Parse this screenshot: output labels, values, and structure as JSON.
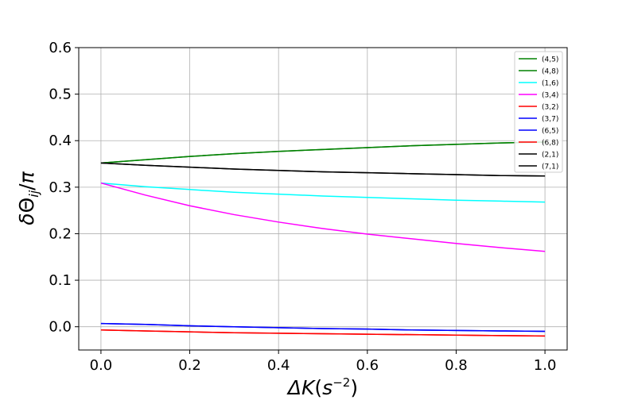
{
  "chart_data": {
    "type": "line",
    "xlabel": "ΔK(s⁻²)",
    "ylabel": "δΘ_ij/π",
    "xlim": [
      -0.05,
      1.05
    ],
    "ylim": [
      -0.05,
      0.6
    ],
    "grid": true,
    "legend_position": "top-right",
    "x_ticks": [
      0.0,
      0.2,
      0.4,
      0.6,
      0.8,
      1.0
    ],
    "x_tick_labels": [
      "0.0",
      "0.2",
      "0.4",
      "0.6",
      "0.8",
      "1.0"
    ],
    "y_ticks": [
      0.0,
      0.1,
      0.2,
      0.3,
      0.4,
      0.5,
      0.6
    ],
    "y_tick_labels": [
      "0.0",
      "0.1",
      "0.2",
      "0.3",
      "0.4",
      "0.5",
      "0.6"
    ],
    "x": [
      0.0,
      0.1,
      0.2,
      0.3,
      0.4,
      0.5,
      0.6,
      0.7,
      0.8,
      0.9,
      1.0
    ],
    "series": [
      {
        "name": "(4,5)",
        "color": "#008000",
        "values": [
          0.352,
          0.359,
          0.366,
          0.372,
          0.377,
          0.381,
          0.385,
          0.389,
          0.392,
          0.395,
          0.397
        ]
      },
      {
        "name": "(4,8)",
        "color": "#008000",
        "values": [
          0.352,
          0.359,
          0.366,
          0.372,
          0.377,
          0.381,
          0.385,
          0.389,
          0.392,
          0.395,
          0.397
        ]
      },
      {
        "name": "(1,6)",
        "color": "#00ffff",
        "values": [
          0.309,
          0.301,
          0.295,
          0.289,
          0.285,
          0.281,
          0.278,
          0.275,
          0.272,
          0.27,
          0.268
        ]
      },
      {
        "name": "(3,4)",
        "color": "#ff00ff",
        "values": [
          0.309,
          0.283,
          0.26,
          0.241,
          0.225,
          0.211,
          0.199,
          0.189,
          0.179,
          0.17,
          0.162
        ]
      },
      {
        "name": "(3,2)",
        "color": "#ff0000",
        "values": [
          -0.007,
          -0.009,
          -0.011,
          -0.013,
          -0.014,
          -0.015,
          -0.016,
          -0.017,
          -0.018,
          -0.019,
          -0.02
        ]
      },
      {
        "name": "(3,7)",
        "color": "#0000ff",
        "values": [
          0.007,
          0.005,
          0.002,
          0.0,
          -0.002,
          -0.004,
          -0.005,
          -0.007,
          -0.008,
          -0.009,
          -0.01
        ]
      },
      {
        "name": "(6,5)",
        "color": "#0000ff",
        "values": [
          0.007,
          0.005,
          0.002,
          0.0,
          -0.002,
          -0.004,
          -0.005,
          -0.007,
          -0.008,
          -0.009,
          -0.01
        ]
      },
      {
        "name": "(6,8)",
        "color": "#ff0000",
        "values": [
          -0.007,
          -0.009,
          -0.011,
          -0.013,
          -0.014,
          -0.015,
          -0.016,
          -0.017,
          -0.018,
          -0.019,
          -0.02
        ]
      },
      {
        "name": "(2,1)",
        "color": "#000000",
        "values": [
          0.352,
          0.347,
          0.343,
          0.339,
          0.336,
          0.333,
          0.331,
          0.329,
          0.327,
          0.325,
          0.324
        ]
      },
      {
        "name": "(7,1)",
        "color": "#000000",
        "values": [
          0.352,
          0.347,
          0.343,
          0.339,
          0.336,
          0.333,
          0.331,
          0.329,
          0.327,
          0.325,
          0.324
        ]
      }
    ]
  }
}
